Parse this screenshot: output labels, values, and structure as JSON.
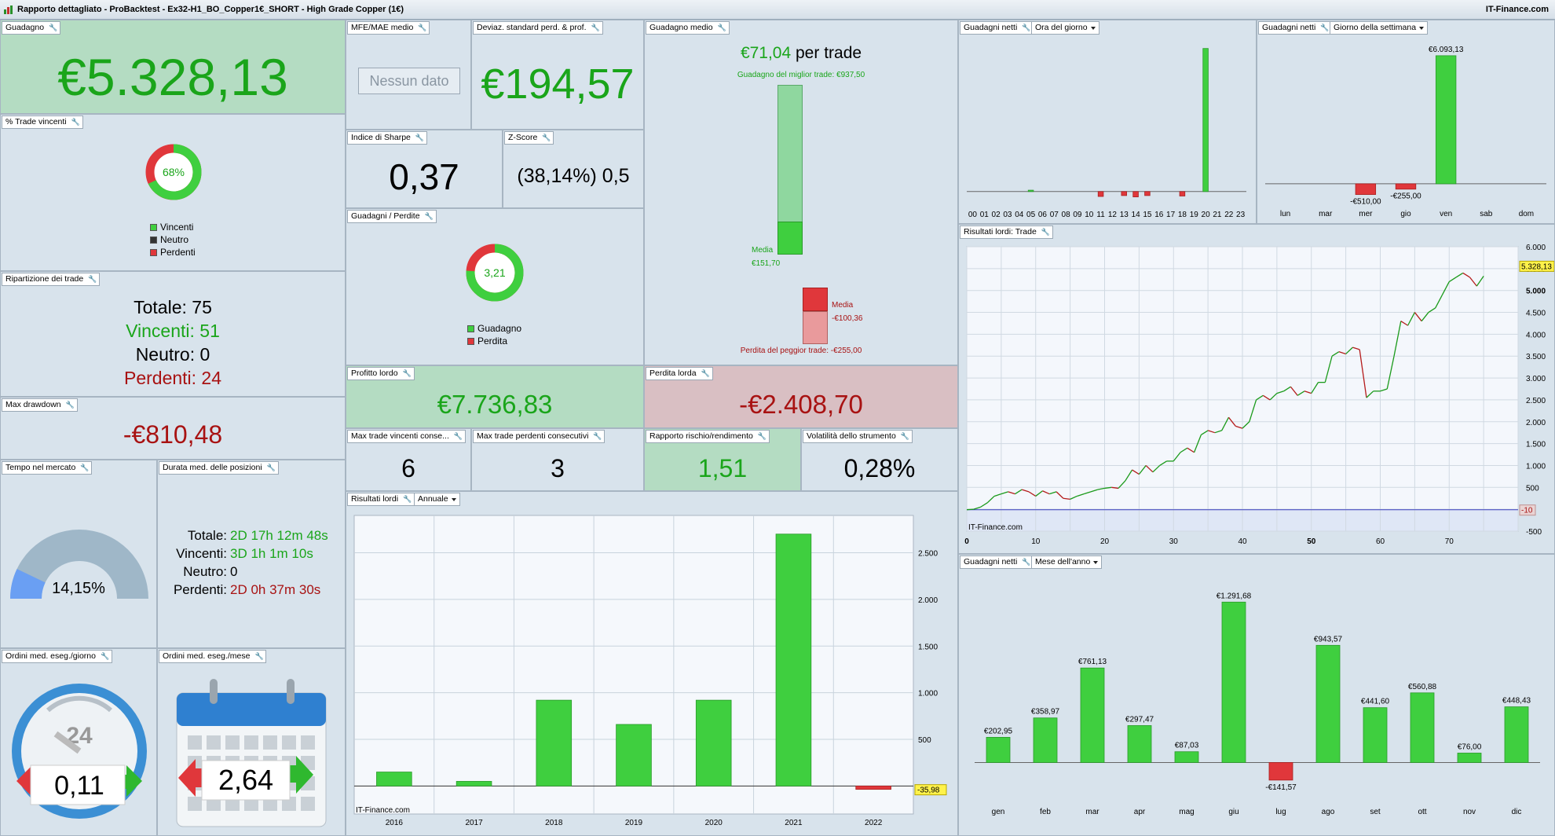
{
  "window": {
    "title": "Rapporto dettagliato - ProBacktest - Ex32-H1_BO_Copper1€_SHORT - High Grade Copper (1€)",
    "brand": "IT-Finance.com"
  },
  "gain": {
    "label": "Guadagno",
    "value": "€5.328,13"
  },
  "mfe": {
    "label": "MFE/MAE medio",
    "button": "Nessun dato"
  },
  "stddev": {
    "label": "Deviaz. standard perd. & prof.",
    "value": "€194,57"
  },
  "avg_gain": {
    "label": "Guadagno medio",
    "value": "€71,04",
    "suffix": " per trade",
    "best": "Guadagno del miglior trade: €937,50",
    "media_label": "Media",
    "media_pos": "€151,70",
    "media_neg": "-€100,36",
    "worst": "Perdita del peggior trade: -€255,00"
  },
  "pct_win": {
    "label": "% Trade vincenti",
    "value": "68%",
    "fraction": 0.68,
    "legend": [
      "Vincenti",
      "Neutro",
      "Perdenti"
    ]
  },
  "sharpe": {
    "label": "Indice di Sharpe",
    "value": "0,37"
  },
  "zscore": {
    "label": "Z-Score",
    "value": "(38,14%) 0,5"
  },
  "gain_loss": {
    "label": "Guadagni / Perdite",
    "value": "3,21",
    "fraction": 0.76,
    "legend": [
      "Guadagno",
      "Perdita"
    ]
  },
  "breakdown": {
    "label": "Ripartizione dei trade",
    "total": "Totale: 75",
    "win": "Vincenti: 51",
    "neutral": "Neutro: 0",
    "lose": "Perdenti: 24"
  },
  "drawdown": {
    "label": "Max drawdown",
    "value": "-€810,48"
  },
  "gross_profit": {
    "label": "Profitto lordo",
    "value": "€7.736,83"
  },
  "gross_loss": {
    "label": "Perdita lorda",
    "value": "-€2.408,70"
  },
  "max_win_streak": {
    "label": "Max trade vincenti conse...",
    "value": "6"
  },
  "max_loss_streak": {
    "label": "Max trade perdenti consecutivi",
    "value": "3"
  },
  "risk_reward": {
    "label": "Rapporto rischio/rendimento",
    "value": "1,51"
  },
  "volatility": {
    "label": "Volatilità dello strumento",
    "value": "0,28%"
  },
  "time_market": {
    "label": "Tempo nel mercato",
    "value": "14,15%",
    "fraction": 0.1415
  },
  "duration": {
    "label": "Durata med. delle posizioni",
    "rows": [
      {
        "k": "Totale:",
        "v": "2D 17h 12m 48s"
      },
      {
        "k": "Vincenti:",
        "v": "3D 1h 1m 10s"
      },
      {
        "k": "Neutro:",
        "v": "0"
      },
      {
        "k": "Perdenti:",
        "v": "2D 0h 37m 30s"
      }
    ]
  },
  "orders_day": {
    "label": "Ordini med. eseg./giorno",
    "value": "0,11",
    "clock": "24"
  },
  "orders_month": {
    "label": "Ordini med. eseg./mese",
    "value": "2,64"
  },
  "hour_chart": {
    "label": "Guadagni netti",
    "dropdown": "Ora del giorno"
  },
  "weekday_chart": {
    "label": "Guadagni netti",
    "dropdown": "Giorno della settimana"
  },
  "trade_chart": {
    "label": "Risultati lordi: Trade",
    "watermark": "IT-Finance.com",
    "last_value": "5.328,13",
    "zero_label": "-10"
  },
  "annual_chart": {
    "label": "Risultati lordi",
    "dropdown": "Annuale",
    "watermark": "IT-Finance.com",
    "last_value": "-35,98"
  },
  "month_chart": {
    "label": "Guadagni netti",
    "dropdown": "Mese dell'anno"
  },
  "chart_data": [
    {
      "type": "bar",
      "id": "hour",
      "categories": [
        "00",
        "01",
        "02",
        "03",
        "04",
        "05",
        "06",
        "07",
        "08",
        "09",
        "10",
        "11",
        "12",
        "13",
        "14",
        "15",
        "16",
        "17",
        "18",
        "19",
        "20",
        "21",
        "22",
        "23"
      ],
      "values": [
        0,
        0,
        0,
        0,
        0,
        30,
        0,
        0,
        0,
        0,
        0,
        -110,
        0,
        -90,
        -120,
        -90,
        0,
        0,
        -100,
        0,
        3200,
        0,
        0,
        0
      ],
      "ylim": [
        -250,
        3300
      ]
    },
    {
      "type": "bar",
      "id": "weekday",
      "categories": [
        "lun",
        "mar",
        "mer",
        "gio",
        "ven",
        "sab",
        "dom"
      ],
      "values": [
        0,
        0,
        -510,
        -255,
        6093.13,
        0,
        0
      ],
      "labels": [
        "",
        "",
        "-€510,00",
        "-€255,00",
        "€6.093,13",
        "",
        ""
      ],
      "ylim": [
        -900,
        6500
      ]
    },
    {
      "type": "line",
      "id": "trade",
      "x": [
        0,
        1,
        2,
        3,
        4,
        5,
        6,
        7,
        8,
        9,
        10,
        11,
        12,
        13,
        14,
        15,
        16,
        17,
        18,
        19,
        20,
        21,
        22,
        23,
        24,
        25,
        26,
        27,
        28,
        29,
        30,
        31,
        32,
        33,
        34,
        35,
        36,
        37,
        38,
        39,
        40,
        41,
        42,
        43,
        44,
        45,
        46,
        47,
        48,
        49,
        50,
        51,
        52,
        53,
        54,
        55,
        56,
        57,
        58,
        59,
        60,
        61,
        62,
        63,
        64,
        65,
        66,
        67,
        68,
        69,
        70,
        71,
        72,
        73,
        74,
        75
      ],
      "values": [
        -10,
        0,
        50,
        150,
        300,
        350,
        400,
        350,
        450,
        400,
        300,
        420,
        350,
        400,
        250,
        230,
        300,
        350,
        400,
        450,
        480,
        500,
        480,
        650,
        900,
        800,
        1000,
        850,
        1000,
        1100,
        1100,
        1300,
        1400,
        1300,
        1700,
        1800,
        1750,
        1800,
        2100,
        1900,
        1850,
        2000,
        2500,
        2600,
        2500,
        2650,
        2700,
        2800,
        2600,
        2700,
        2650,
        2900,
        2900,
        3500,
        3600,
        3550,
        3700,
        3650,
        2550,
        2700,
        2700,
        2750,
        3500,
        4300,
        4200,
        4500,
        4300,
        4500,
        4600,
        4900,
        5200,
        5300,
        5400,
        5300,
        5100,
        5328.13
      ],
      "xlim": [
        0,
        80
      ],
      "ylim": [
        -500,
        6000
      ],
      "xticks": [
        0,
        10,
        20,
        30,
        40,
        50,
        60,
        70
      ],
      "yticks": [
        -500,
        0,
        500,
        1000,
        1500,
        2000,
        2500,
        3000,
        3500,
        4000,
        4500,
        5000,
        5500,
        6000
      ],
      "ytick_labels": [
        "-500",
        "",
        "500",
        "1.000",
        "1.500",
        "2.000",
        "2.500",
        "3.000",
        "3.500",
        "4.000",
        "4.500",
        "5.000",
        "5.500",
        "6.000"
      ]
    },
    {
      "type": "bar",
      "id": "annual",
      "categories": [
        "2016",
        "2017",
        "2018",
        "2019",
        "2020",
        "2021",
        "2022"
      ],
      "values": [
        150,
        50,
        920,
        660,
        920,
        2700,
        -35.98
      ],
      "ylim": [
        -300,
        2900
      ],
      "yticks": [
        500,
        1000,
        1500,
        2000,
        2500
      ],
      "ytick_labels": [
        "500",
        "1.000",
        "1.500",
        "2.000",
        "2.500"
      ]
    },
    {
      "type": "bar",
      "id": "month",
      "categories": [
        "gen",
        "feb",
        "mar",
        "apr",
        "mag",
        "giu",
        "lug",
        "ago",
        "set",
        "ott",
        "nov",
        "dic"
      ],
      "values": [
        202.95,
        358.97,
        761.13,
        297.47,
        87.03,
        1291.68,
        -141.57,
        943.57,
        441.6,
        560.88,
        76,
        448.43
      ],
      "labels": [
        "€202,95",
        "€358,97",
        "€761,13",
        "€297,47",
        "€87,03",
        "€1.291,68",
        "-€141,57",
        "€943,57",
        "€441,60",
        "€560,88",
        "€76,00",
        "€448,43"
      ],
      "ylim": [
        -250,
        1420
      ]
    }
  ],
  "colors": {
    "green": "#3fcf3f",
    "red": "#e0373b",
    "text_green": "#1aa51a",
    "text_red": "#a81212"
  }
}
